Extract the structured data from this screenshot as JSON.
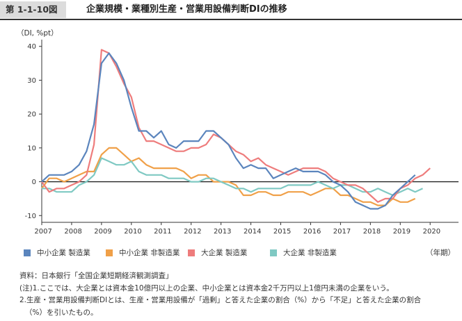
{
  "header": {
    "figure_number": "第 1-1-10図",
    "title": "企業規模・業種別生産・営業用設備判断DIの推移"
  },
  "chart_data": {
    "type": "line",
    "y_unit_label": "（DI, %pt）",
    "x_unit_label": "（年期）",
    "ylim": [
      -12,
      42
    ],
    "yticks": [
      40,
      30,
      20,
      10,
      0,
      -10
    ],
    "xticks": [
      "2007",
      "2008",
      "2009",
      "2010",
      "2011",
      "2012",
      "2013",
      "2014",
      "2015",
      "2016",
      "2017",
      "2018",
      "2019",
      "2020"
    ],
    "quarters_per_year": 4,
    "x_start": "2007Q1",
    "series": [
      {
        "name": "中小企業 製造業",
        "color": "#5b85bd",
        "values": [
          0,
          2,
          2,
          2,
          3,
          5,
          9,
          17,
          35,
          38,
          35,
          30,
          22,
          15,
          15,
          13,
          15,
          11,
          10,
          12,
          12,
          12,
          15,
          15,
          13,
          11,
          7,
          4,
          5,
          4,
          4,
          1,
          2,
          3,
          4,
          3,
          3,
          3,
          2,
          0,
          -1,
          -3,
          -6,
          -7,
          -8,
          -8,
          -7,
          -4,
          -2,
          0,
          2
        ]
      },
      {
        "name": "中小企業 非製造業",
        "color": "#f0a048",
        "values": [
          -2,
          1,
          1,
          0,
          1,
          2,
          3,
          3,
          8,
          10,
          10,
          8,
          6,
          7,
          5,
          4,
          4,
          4,
          4,
          3,
          1,
          2,
          2,
          0,
          0,
          0,
          -1,
          -4,
          -4,
          -3,
          -3,
          -4,
          -4,
          -3,
          -3,
          -3,
          -4,
          -3,
          -2,
          -2,
          -4,
          -4,
          -5,
          -6,
          -6,
          -7,
          -7,
          -5,
          -6,
          -6,
          -5
        ]
      },
      {
        "name": "大企業 製造業",
        "color": "#ee7c7c",
        "values": [
          0,
          -3,
          -2,
          -2,
          -1,
          0,
          2,
          11,
          39,
          38,
          34,
          29,
          25,
          16,
          12,
          12,
          11,
          10,
          9,
          9,
          10,
          10,
          11,
          14,
          13,
          11,
          9,
          8,
          6,
          7,
          5,
          4,
          3,
          2,
          3,
          4,
          4,
          4,
          3,
          1,
          0,
          -1,
          -1,
          -2,
          -4,
          -6,
          -5,
          -5,
          -2,
          -1,
          1,
          2,
          4
        ]
      },
      {
        "name": "大企業 非製造業",
        "color": "#7fc9c3",
        "values": [
          -2,
          -2,
          -3,
          -3,
          -3,
          -1,
          0,
          2,
          7,
          6,
          5,
          5,
          6,
          3,
          2,
          2,
          2,
          1,
          1,
          1,
          0,
          0,
          1,
          1,
          0,
          -1,
          -2,
          -2,
          -3,
          -2,
          -2,
          -2,
          -2,
          -1,
          -1,
          -1,
          -1,
          0,
          -1,
          -2,
          -1,
          -1,
          -2,
          -3,
          -3,
          -2,
          -3,
          -4,
          -3,
          -2,
          -3,
          -2
        ]
      }
    ]
  },
  "notes": {
    "source": "資料：日本銀行「全国企業短期経済観測調査」",
    "note1": "(注)1.ここでは、大企業とは資本金10億円以上の企業、中小企業とは資本金2千万円以上1億円未満の企業をいう。",
    "note2": "2.生産・営業用設備判断DIとは、生産・営業用設備が「過剰」と答えた企業の割合（%）から「不足」と答えた企業の割合",
    "note3": "（%）を引いたもの。"
  }
}
